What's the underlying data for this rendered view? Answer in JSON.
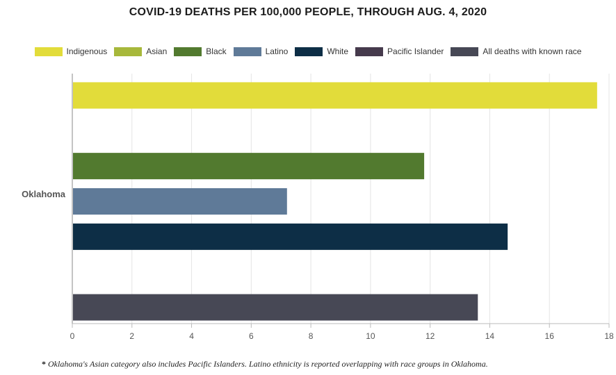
{
  "chart_data": {
    "type": "bar",
    "orientation": "horizontal",
    "title": "COVID-19 DEATHS PER 100,000 PEOPLE, THROUGH AUG. 4, 2020",
    "categories": [
      "Oklahoma"
    ],
    "series": [
      {
        "name": "Indigenous",
        "color": "#e2dc3a",
        "values": [
          17.6
        ]
      },
      {
        "name": "Asian",
        "color": "#a7b83b",
        "values": [
          null
        ]
      },
      {
        "name": "Black",
        "color": "#527a2f",
        "values": [
          11.8
        ]
      },
      {
        "name": "Latino",
        "color": "#5f7a98",
        "values": [
          7.2
        ]
      },
      {
        "name": "White",
        "color": "#0d2e46",
        "values": [
          14.6
        ]
      },
      {
        "name": "Pacific Islander",
        "color": "#463a4c",
        "values": [
          null
        ]
      },
      {
        "name": "All deaths with known race",
        "color": "#474855",
        "values": [
          13.6
        ]
      }
    ],
    "xlim": [
      0,
      18
    ],
    "xticks": [
      "0",
      "2",
      "4",
      "6",
      "8",
      "10",
      "12",
      "14",
      "16",
      "18"
    ],
    "xlabel": "",
    "ylabel": "",
    "grid": true,
    "legend_position": "top"
  },
  "footnote": {
    "marker": "*",
    "text": "Oklahoma's Asian category also includes Pacific Islanders. Latino ethnicity is reported overlapping with race groups in Oklahoma."
  }
}
